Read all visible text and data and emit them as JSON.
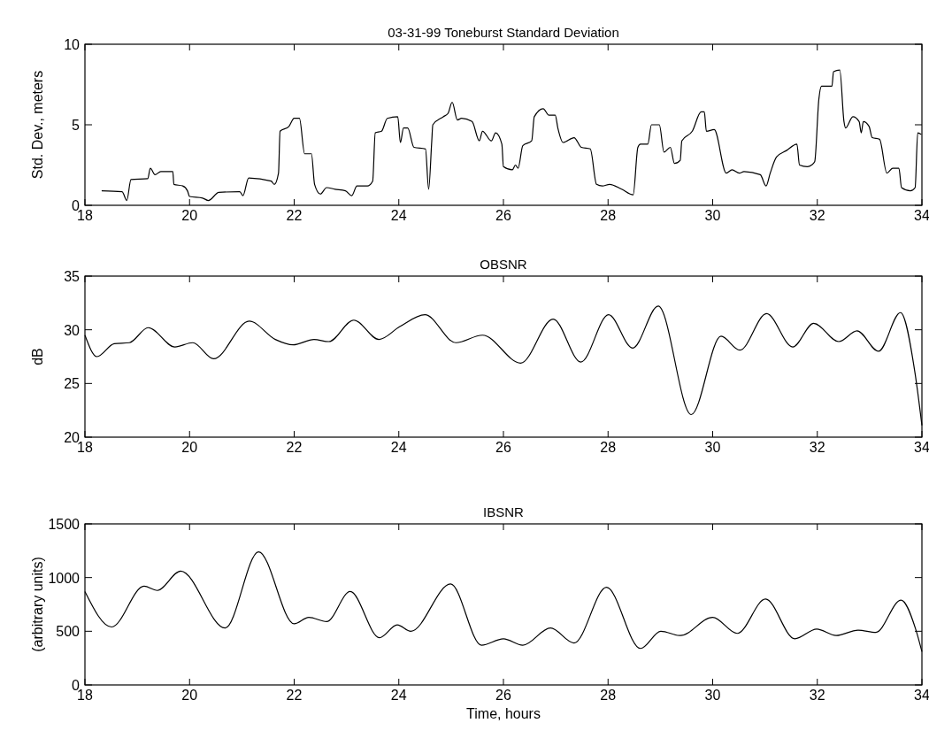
{
  "chart_data": [
    {
      "type": "line",
      "title": "03-31-99 Toneburst Standard Deviation",
      "ylabel": "Std. Dev., meters",
      "xlim": [
        18,
        34
      ],
      "xticks": [
        18,
        20,
        22,
        24,
        26,
        28,
        30,
        32,
        34
      ],
      "ylim": [
        0,
        10
      ],
      "yticks": [
        0,
        5,
        10
      ],
      "x": [
        18.32,
        18.71,
        18.8,
        18.88,
        19.2,
        19.25,
        19.34,
        19.45,
        19.68,
        19.7,
        19.87,
        19.96,
        20.0,
        20.25,
        20.36,
        20.56,
        20.96,
        21.02,
        21.13,
        21.56,
        21.62,
        21.7,
        21.73,
        21.9,
        22.0,
        22.1,
        22.2,
        22.33,
        22.39,
        22.5,
        22.62,
        22.78,
        22.98,
        23.1,
        23.2,
        23.4,
        23.5,
        23.55,
        23.67,
        23.78,
        23.98,
        24.03,
        24.09,
        24.17,
        24.29,
        24.51,
        24.57,
        24.63,
        24.65,
        24.85,
        24.94,
        25.02,
        25.12,
        25.2,
        25.4,
        25.54,
        25.6,
        25.77,
        25.85,
        25.97,
        26.0,
        26.17,
        26.23,
        26.28,
        26.37,
        26.54,
        26.59,
        26.76,
        26.87,
        26.99,
        27.04,
        27.14,
        27.35,
        27.49,
        27.66,
        27.78,
        27.89,
        28.03,
        28.26,
        28.48,
        28.57,
        28.62,
        28.76,
        28.83,
        28.98,
        29.07,
        29.19,
        29.27,
        29.38,
        29.41,
        29.61,
        29.78,
        29.84,
        29.88,
        30.03,
        30.26,
        30.37,
        30.51,
        30.6,
        30.91,
        31.02,
        31.1,
        31.22,
        31.41,
        31.61,
        31.66,
        31.81,
        31.89,
        31.95,
        32.03,
        32.08,
        32.28,
        32.31,
        32.43,
        32.51,
        32.54,
        32.68,
        32.8,
        32.84,
        32.88,
        32.99,
        33.05,
        33.19,
        33.33,
        33.44,
        33.56,
        33.61,
        33.78,
        33.87,
        33.92,
        33.99
      ],
      "series": [
        {
          "color": "#000000",
          "values": [
            0.9,
            0.85,
            0.3,
            1.6,
            1.65,
            2.3,
            1.9,
            2.1,
            2.1,
            1.3,
            1.2,
            0.9,
            0.55,
            0.45,
            0.3,
            0.8,
            0.85,
            0.6,
            1.7,
            1.5,
            1.3,
            2.0,
            4.6,
            4.9,
            5.4,
            5.4,
            3.2,
            3.2,
            1.3,
            0.7,
            1.1,
            1.0,
            0.9,
            0.6,
            1.2,
            1.2,
            1.5,
            4.5,
            4.6,
            5.4,
            5.5,
            3.9,
            4.8,
            4.8,
            3.6,
            3.5,
            1.0,
            4.0,
            5.0,
            5.5,
            5.7,
            6.4,
            5.3,
            5.4,
            5.2,
            4.0,
            4.6,
            4.0,
            4.5,
            3.8,
            2.4,
            2.2,
            2.5,
            2.3,
            3.7,
            4.0,
            5.5,
            6.0,
            5.6,
            5.6,
            4.8,
            3.9,
            4.2,
            3.6,
            3.5,
            1.3,
            1.2,
            1.3,
            1.0,
            0.65,
            3.6,
            3.8,
            3.8,
            5.0,
            5.0,
            3.3,
            3.6,
            2.6,
            2.8,
            4.0,
            4.6,
            5.8,
            5.8,
            4.6,
            4.7,
            2.0,
            2.2,
            2.0,
            2.1,
            1.9,
            1.2,
            2.0,
            3.0,
            3.4,
            3.8,
            2.5,
            2.4,
            2.5,
            2.7,
            6.6,
            7.4,
            7.4,
            8.3,
            8.4,
            5.2,
            4.8,
            5.5,
            5.2,
            4.5,
            5.2,
            4.9,
            4.2,
            4.1,
            2.0,
            2.3,
            2.3,
            1.1,
            0.9,
            1.1,
            4.5,
            4.4
          ]
        }
      ]
    },
    {
      "type": "line",
      "title": "OBSNR",
      "ylabel": "dB",
      "xlim": [
        18,
        34
      ],
      "xticks": [
        18,
        20,
        22,
        24,
        26,
        28,
        30,
        32,
        34
      ],
      "ylim": [
        20,
        35
      ],
      "yticks": [
        20,
        25,
        30,
        35
      ],
      "x": [
        18.0,
        18.23,
        18.56,
        18.85,
        19.21,
        19.72,
        20.06,
        20.46,
        21.14,
        21.64,
        21.98,
        22.38,
        22.66,
        23.14,
        23.62,
        24.02,
        24.5,
        25.09,
        25.6,
        26.33,
        26.95,
        27.48,
        28.01,
        28.47,
        28.96,
        29.59,
        30.16,
        30.52,
        31.03,
        31.53,
        31.93,
        32.41,
        32.76,
        33.17,
        33.59,
        33.87,
        34.0
      ],
      "series": [
        {
          "color": "#000000",
          "values": [
            29.5,
            27.5,
            28.7,
            28.8,
            30.2,
            28.4,
            28.8,
            27.3,
            30.8,
            29.1,
            28.6,
            29.1,
            28.9,
            30.9,
            29.1,
            30.3,
            31.4,
            28.8,
            29.5,
            26.9,
            31.0,
            27.0,
            31.4,
            28.3,
            32.2,
            22.1,
            29.4,
            28.1,
            31.5,
            28.4,
            30.6,
            28.9,
            29.9,
            28.0,
            31.6,
            25.9,
            21.1
          ]
        }
      ]
    },
    {
      "type": "line",
      "title": "IBSNR",
      "xlabel": "Time, hours",
      "ylabel": "(arbitrary units)",
      "xlim": [
        18,
        34
      ],
      "xticks": [
        18,
        20,
        22,
        24,
        26,
        28,
        30,
        32,
        34
      ],
      "ylim": [
        0,
        1500
      ],
      "yticks": [
        0,
        500,
        1000,
        1500
      ],
      "x": [
        18.0,
        18.51,
        19.13,
        19.38,
        19.83,
        20.68,
        21.32,
        22.0,
        22.28,
        22.62,
        23.07,
        23.63,
        23.97,
        24.23,
        24.99,
        25.58,
        26.0,
        26.37,
        26.9,
        27.35,
        27.97,
        28.62,
        29.01,
        29.38,
        30.0,
        30.47,
        31.01,
        31.57,
        31.99,
        32.36,
        32.78,
        33.12,
        33.6,
        33.88,
        34.0
      ],
      "series": [
        {
          "color": "#000000",
          "values": [
            870,
            540,
            920,
            880,
            1060,
            530,
            1240,
            570,
            630,
            590,
            870,
            440,
            560,
            500,
            940,
            370,
            430,
            370,
            530,
            390,
            910,
            340,
            500,
            460,
            630,
            480,
            800,
            430,
            520,
            460,
            510,
            490,
            790,
            520,
            310
          ]
        }
      ]
    }
  ]
}
